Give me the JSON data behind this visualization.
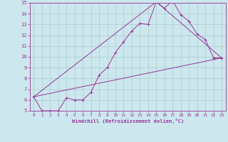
{
  "xlabel": "Windchill (Refroidissement éolien,°C)",
  "xlim": [
    -0.5,
    23.5
  ],
  "ylim": [
    5,
    15
  ],
  "xticks": [
    0,
    1,
    2,
    3,
    4,
    5,
    6,
    7,
    8,
    9,
    10,
    11,
    12,
    13,
    14,
    15,
    16,
    17,
    18,
    19,
    20,
    21,
    22,
    23
  ],
  "yticks": [
    5,
    6,
    7,
    8,
    9,
    10,
    11,
    12,
    13,
    14,
    15
  ],
  "line_color": "#993399",
  "bg_color": "#cce8ee",
  "grid_color": "#aacccc",
  "line1_x": [
    0,
    1,
    2,
    3,
    4,
    5,
    6,
    7,
    8,
    9,
    10,
    11,
    12,
    13,
    14,
    15,
    16,
    17,
    18,
    19,
    20,
    21,
    22,
    23
  ],
  "line1_y": [
    6.3,
    5.0,
    5.0,
    5.0,
    6.2,
    6.0,
    6.0,
    6.7,
    8.3,
    9.0,
    10.4,
    11.4,
    12.4,
    13.1,
    13.0,
    15.1,
    14.5,
    15.2,
    13.9,
    13.3,
    12.1,
    11.6,
    9.9,
    9.9
  ],
  "line2_x": [
    0,
    23
  ],
  "line2_y": [
    6.3,
    9.9
  ],
  "line3_x": [
    0,
    15,
    23
  ],
  "line3_y": [
    6.3,
    15.1,
    9.9
  ]
}
